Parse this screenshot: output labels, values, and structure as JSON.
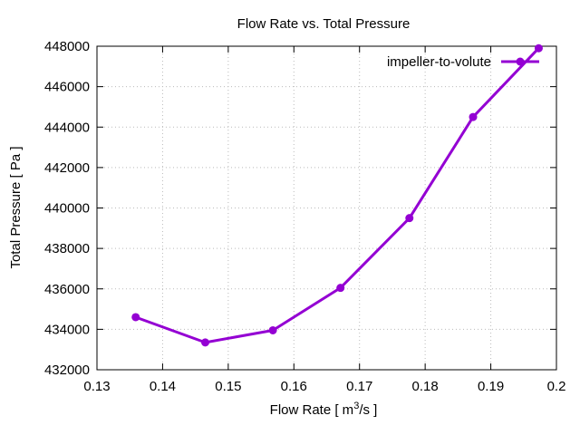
{
  "chart_data": {
    "type": "line",
    "title": "Flow Rate vs. Total Pressure",
    "xlabel_prefix": "Flow Rate [ m",
    "xlabel_sup": "3",
    "xlabel_suffix": "/s ]",
    "ylabel": "Total Pressure [ Pa ]",
    "xlim": [
      0.13,
      0.2
    ],
    "ylim": [
      432000,
      448000
    ],
    "x_ticks": [
      "0.13",
      "0.14",
      "0.15",
      "0.16",
      "0.17",
      "0.18",
      "0.19",
      "0.2"
    ],
    "y_ticks": [
      "432000",
      "434000",
      "436000",
      "438000",
      "440000",
      "442000",
      "444000",
      "446000",
      "448000"
    ],
    "grid": true,
    "legend_position": "top-right",
    "series": [
      {
        "name": "impeller-to-volute",
        "color": "#9400d3",
        "marker": "circle",
        "x": [
          0.1359,
          0.1465,
          0.1568,
          0.1671,
          0.1776,
          0.1873,
          0.1973
        ],
        "y": [
          434600,
          433350,
          433950,
          436050,
          439500,
          444500,
          447900
        ]
      }
    ]
  }
}
